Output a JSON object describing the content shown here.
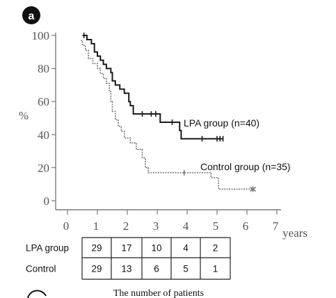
{
  "panel_label": "a",
  "colors": {
    "lpa": "#1a1a1a",
    "control": "#777777",
    "axis": "#7a7a7a",
    "badge": "#111111"
  },
  "chart_data": {
    "type": "line",
    "subtype": "kaplan-meier step curve",
    "ylabel": "%",
    "xlabel": "years",
    "xlim": [
      0,
      7
    ],
    "ylim": [
      0,
      100
    ],
    "x_ticks": [
      "0",
      "1",
      "2",
      "3",
      "4",
      "5",
      "6",
      "7"
    ],
    "y_ticks": [
      "0",
      "20",
      "40",
      "60",
      "80",
      "100"
    ],
    "grid": false,
    "series": [
      {
        "name": "LPA group (n=40)",
        "style": "solid",
        "points": [
          [
            0.5,
            100
          ],
          [
            0.65,
            97.5
          ],
          [
            0.8,
            95
          ],
          [
            0.9,
            90
          ],
          [
            1.0,
            87.5
          ],
          [
            1.1,
            85
          ],
          [
            1.2,
            82.5
          ],
          [
            1.3,
            80
          ],
          [
            1.45,
            77.5
          ],
          [
            1.5,
            72.5
          ],
          [
            1.6,
            70
          ],
          [
            1.75,
            67.5
          ],
          [
            1.9,
            65
          ],
          [
            2.05,
            60
          ],
          [
            2.1,
            57.5
          ],
          [
            2.2,
            52.5
          ],
          [
            3.1,
            47.5
          ],
          [
            3.75,
            42.5
          ],
          [
            3.8,
            37.5
          ],
          [
            5.2,
            37.5
          ]
        ],
        "censored_x": [
          0.55,
          2.5,
          2.8,
          2.95,
          3.5,
          4.5,
          5.0,
          5.1,
          5.2
        ]
      },
      {
        "name": "Control group (n=35)",
        "style": "dotted",
        "points": [
          [
            0.45,
            97
          ],
          [
            0.5,
            94
          ],
          [
            0.6,
            91
          ],
          [
            0.7,
            86
          ],
          [
            0.85,
            83
          ],
          [
            1.0,
            80
          ],
          [
            1.1,
            77
          ],
          [
            1.2,
            74
          ],
          [
            1.3,
            71
          ],
          [
            1.4,
            66
          ],
          [
            1.45,
            60
          ],
          [
            1.5,
            54
          ],
          [
            1.6,
            49
          ],
          [
            1.7,
            45
          ],
          [
            1.8,
            42
          ],
          [
            1.9,
            38
          ],
          [
            2.1,
            35
          ],
          [
            2.3,
            31
          ],
          [
            2.5,
            26
          ],
          [
            2.6,
            20
          ],
          [
            2.7,
            17
          ],
          [
            3.95,
            17
          ],
          [
            4.8,
            14
          ],
          [
            5.05,
            7
          ],
          [
            6.2,
            7
          ]
        ],
        "censored_x": [
          3.9,
          6.2
        ]
      }
    ]
  },
  "risk_table": {
    "title": "The number of patients",
    "rows": [
      {
        "label": "LPA group",
        "values": [
          "29",
          "17",
          "10",
          "4",
          "2"
        ]
      },
      {
        "label": "Control",
        "values": [
          "29",
          "13",
          "6",
          "5",
          "1"
        ]
      }
    ]
  }
}
